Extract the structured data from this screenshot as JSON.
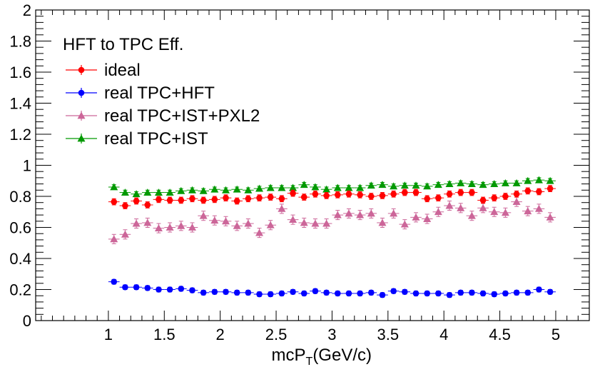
{
  "chart_data": {
    "type": "scatter",
    "xlabel": "mcP",
    "xlabel_sub": "T",
    "xlabel_unit": "(GeV/c)",
    "ylabel": "",
    "xlim": [
      0.35,
      5.3
    ],
    "ylim": [
      0,
      2
    ],
    "x_ticks": [
      1,
      1.5,
      2,
      2.5,
      3,
      3.5,
      4,
      4.5,
      5
    ],
    "x_tick_labels": [
      "1",
      "1.5",
      "2",
      "2.5",
      "3",
      "3.5",
      "4",
      "4.5",
      "5"
    ],
    "y_ticks": [
      0,
      0.2,
      0.4,
      0.6,
      0.8,
      1,
      1.2,
      1.4,
      1.6,
      1.8,
      2
    ],
    "y_tick_labels": [
      "0",
      "0.2",
      "0.4",
      "0.6",
      "0.8",
      "1",
      "1.2",
      "1.4",
      "1.6",
      "1.8",
      "2"
    ],
    "grid": false,
    "legend_title": "HFT to TPC Eff.",
    "legend_position": "top-left",
    "x": [
      1.05,
      1.15,
      1.25,
      1.35,
      1.45,
      1.55,
      1.65,
      1.75,
      1.85,
      1.95,
      2.05,
      2.15,
      2.25,
      2.35,
      2.45,
      2.55,
      2.65,
      2.75,
      2.85,
      2.95,
      3.05,
      3.15,
      3.25,
      3.35,
      3.45,
      3.55,
      3.65,
      3.75,
      3.85,
      3.95,
      4.05,
      4.15,
      4.25,
      4.35,
      4.45,
      4.55,
      4.65,
      4.75,
      4.85,
      4.95
    ],
    "x_error": 0.05,
    "series": [
      {
        "name": "ideal",
        "color": "#ff0000",
        "marker": "circle",
        "values": [
          0.765,
          0.74,
          0.77,
          0.745,
          0.78,
          0.775,
          0.775,
          0.785,
          0.775,
          0.78,
          0.79,
          0.77,
          0.785,
          0.79,
          0.795,
          0.785,
          0.82,
          0.795,
          0.815,
          0.805,
          0.81,
          0.815,
          0.81,
          0.8,
          0.805,
          0.815,
          0.825,
          0.825,
          0.785,
          0.79,
          0.815,
          0.825,
          0.825,
          0.775,
          0.79,
          0.8,
          0.815,
          0.835,
          0.83,
          0.85
        ],
        "errors": [
          0.02,
          0.02,
          0.02,
          0.02,
          0.02,
          0.02,
          0.02,
          0.02,
          0.02,
          0.02,
          0.02,
          0.02,
          0.02,
          0.02,
          0.02,
          0.02,
          0.02,
          0.02,
          0.02,
          0.02,
          0.02,
          0.02,
          0.02,
          0.02,
          0.02,
          0.02,
          0.02,
          0.02,
          0.02,
          0.02,
          0.02,
          0.02,
          0.02,
          0.02,
          0.02,
          0.02,
          0.02,
          0.02,
          0.02,
          0.02
        ]
      },
      {
        "name": "real TPC+HFT",
        "color": "#0000ff",
        "marker": "circle",
        "values": [
          0.25,
          0.215,
          0.215,
          0.21,
          0.2,
          0.2,
          0.205,
          0.195,
          0.18,
          0.185,
          0.185,
          0.18,
          0.18,
          0.17,
          0.17,
          0.175,
          0.185,
          0.175,
          0.19,
          0.18,
          0.175,
          0.175,
          0.175,
          0.18,
          0.165,
          0.19,
          0.185,
          0.175,
          0.175,
          0.175,
          0.165,
          0.18,
          0.18,
          0.175,
          0.17,
          0.175,
          0.18,
          0.18,
          0.2,
          0.185
        ],
        "errors": [
          0.015,
          0.015,
          0.015,
          0.015,
          0.015,
          0.015,
          0.015,
          0.015,
          0.015,
          0.015,
          0.015,
          0.015,
          0.015,
          0.015,
          0.015,
          0.015,
          0.015,
          0.015,
          0.015,
          0.015,
          0.015,
          0.015,
          0.015,
          0.015,
          0.015,
          0.015,
          0.015,
          0.015,
          0.015,
          0.015,
          0.015,
          0.015,
          0.015,
          0.015,
          0.015,
          0.015,
          0.015,
          0.015,
          0.015,
          0.015
        ]
      },
      {
        "name": "real TPC+IST+PXL2",
        "color": "#cc6699",
        "marker": "triangle",
        "values": [
          0.525,
          0.555,
          0.625,
          0.63,
          0.595,
          0.6,
          0.61,
          0.6,
          0.675,
          0.645,
          0.64,
          0.61,
          0.625,
          0.565,
          0.615,
          0.72,
          0.65,
          0.63,
          0.625,
          0.625,
          0.68,
          0.69,
          0.68,
          0.69,
          0.63,
          0.69,
          0.62,
          0.665,
          0.655,
          0.7,
          0.74,
          0.725,
          0.675,
          0.725,
          0.7,
          0.695,
          0.765,
          0.705,
          0.72,
          0.665
        ],
        "errors": [
          0.03,
          0.03,
          0.03,
          0.03,
          0.03,
          0.03,
          0.03,
          0.03,
          0.03,
          0.03,
          0.03,
          0.03,
          0.03,
          0.03,
          0.03,
          0.03,
          0.03,
          0.03,
          0.03,
          0.03,
          0.03,
          0.03,
          0.03,
          0.03,
          0.03,
          0.03,
          0.03,
          0.03,
          0.03,
          0.03,
          0.03,
          0.03,
          0.03,
          0.03,
          0.03,
          0.03,
          0.03,
          0.03,
          0.03,
          0.03
        ]
      },
      {
        "name": "real TPC+IST",
        "color": "#009900",
        "marker": "triangle",
        "values": [
          0.86,
          0.825,
          0.815,
          0.825,
          0.825,
          0.825,
          0.835,
          0.84,
          0.835,
          0.845,
          0.84,
          0.845,
          0.84,
          0.85,
          0.855,
          0.855,
          0.855,
          0.875,
          0.86,
          0.845,
          0.855,
          0.855,
          0.855,
          0.87,
          0.875,
          0.865,
          0.87,
          0.87,
          0.865,
          0.875,
          0.88,
          0.885,
          0.88,
          0.875,
          0.88,
          0.885,
          0.885,
          0.9,
          0.905,
          0.9
        ],
        "errors": [
          0.015,
          0.015,
          0.015,
          0.015,
          0.015,
          0.015,
          0.015,
          0.015,
          0.015,
          0.015,
          0.015,
          0.015,
          0.015,
          0.015,
          0.015,
          0.015,
          0.015,
          0.015,
          0.015,
          0.015,
          0.015,
          0.015,
          0.015,
          0.015,
          0.015,
          0.015,
          0.015,
          0.015,
          0.015,
          0.015,
          0.015,
          0.015,
          0.015,
          0.015,
          0.015,
          0.015,
          0.015,
          0.015,
          0.015,
          0.015
        ]
      }
    ]
  }
}
